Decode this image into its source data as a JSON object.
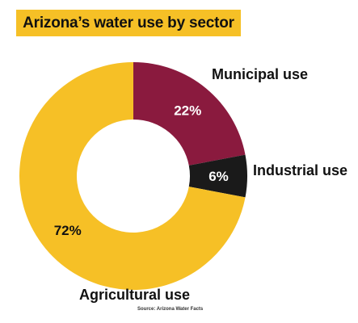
{
  "chart_data": {
    "type": "pie",
    "title": "Arizona’s water use by sector",
    "source": "Source: Arizona Water Facts",
    "slices": [
      {
        "label": "Municipal use",
        "value": 22,
        "value_label": "22%",
        "color": "#8a1a3e"
      },
      {
        "label": "Industrial use",
        "value": 6,
        "value_label": "6%",
        "color": "#1a1a1a"
      },
      {
        "label": "Agricultural use",
        "value": 72,
        "value_label": "72%",
        "color": "#f6c026"
      }
    ]
  }
}
